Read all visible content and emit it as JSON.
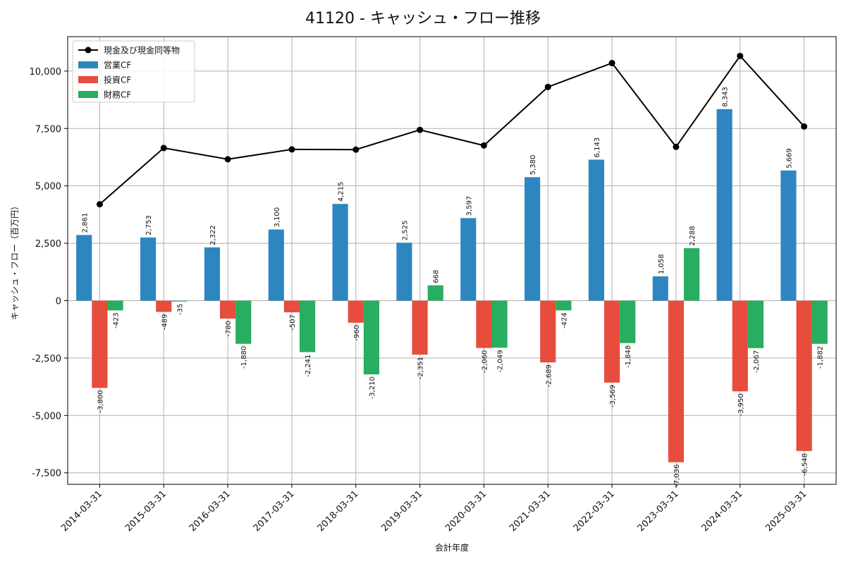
{
  "chart_data": {
    "type": "bar",
    "title": "41120 - キャッシュ・フロー推移",
    "xlabel": "会計年度",
    "ylabel": "キャッシュ・フロー（百万円）",
    "ylim": [
      -8000,
      11500
    ],
    "yticks": [
      -7500,
      -5000,
      -2500,
      0,
      2500,
      5000,
      7500,
      10000
    ],
    "ytick_labels": [
      "-7,500",
      "-5,000",
      "-2,500",
      "0",
      "2,500",
      "5,000",
      "7,500",
      "10,000"
    ],
    "grid": true,
    "legend_position": "top-left",
    "categories": [
      "2014-03-31",
      "2015-03-31",
      "2016-03-31",
      "2017-03-31",
      "2018-03-31",
      "2019-03-31",
      "2020-03-31",
      "2021-03-31",
      "2022-03-31",
      "2023-03-31",
      "2024-03-31",
      "2025-03-31"
    ],
    "series": [
      {
        "name": "営業CF",
        "kind": "bar",
        "color": "#2e86c1",
        "values": [
          2861,
          2753,
          2322,
          3100,
          4215,
          2525,
          3597,
          5380,
          6143,
          1058,
          8343,
          5669
        ],
        "labels": [
          "2,861",
          "2,753",
          "2,322",
          "3,100",
          "4,215",
          "2,525",
          "3,597",
          "5,380",
          "6,143",
          "1,058",
          "8,343",
          "5,669"
        ]
      },
      {
        "name": "投資CF",
        "kind": "bar",
        "color": "#e74c3c",
        "values": [
          -3800,
          -489,
          -780,
          -507,
          -960,
          -2351,
          -2060,
          -2689,
          -3569,
          -7036,
          -3950,
          -6548
        ],
        "labels": [
          "-3,800",
          "-489",
          "-780",
          "-507",
          "-960",
          "-2,351",
          "-2,060",
          "-2,689",
          "-3,569",
          "-7,036",
          "-3,950",
          "-6,548"
        ]
      },
      {
        "name": "財務CF",
        "kind": "bar",
        "color": "#27ae60",
        "values": [
          -423,
          -35,
          -1880,
          -2241,
          -3210,
          668,
          -2049,
          -424,
          -1848,
          2288,
          -2067,
          -1882
        ],
        "labels": [
          "-423",
          "-35",
          "-1,880",
          "-2,241",
          "-3,210",
          "668",
          "-2,049",
          "-424",
          "-1,848",
          "2,288",
          "-2,067",
          "-1,882"
        ]
      },
      {
        "name": "現金及び現金同等物",
        "kind": "line",
        "color": "#000000",
        "values": [
          4200,
          6650,
          6160,
          6590,
          6580,
          7440,
          6760,
          9310,
          10350,
          6700,
          10660,
          7590
        ]
      }
    ]
  }
}
